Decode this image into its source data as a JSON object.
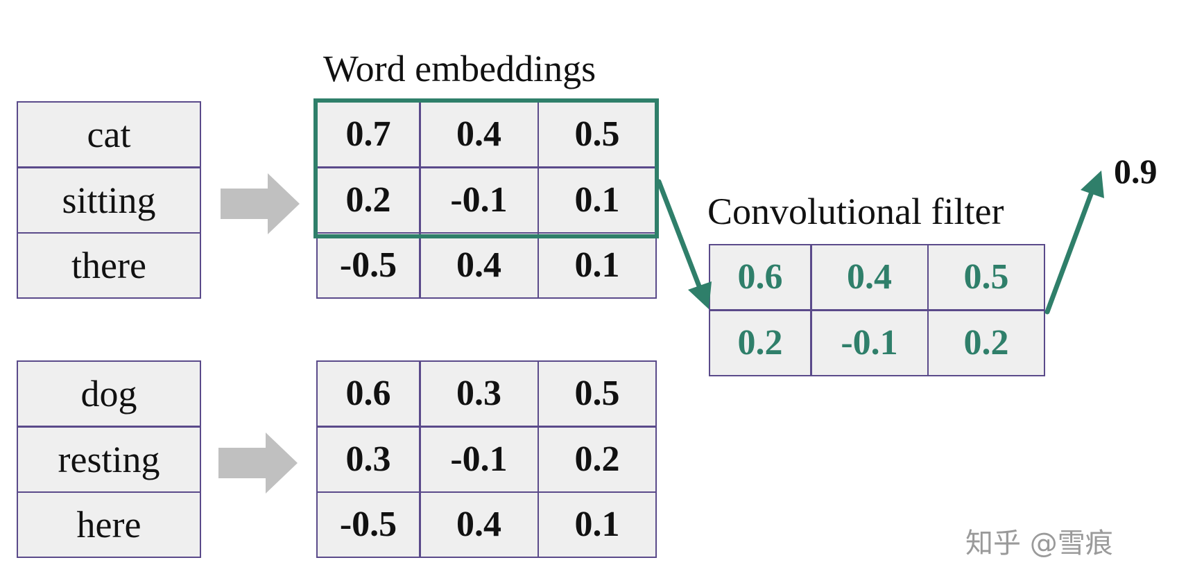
{
  "embeddings_title": "Word embeddings",
  "filter_title": "Convolutional filter",
  "sentence_1": {
    "words": [
      "cat",
      "sitting",
      "there"
    ],
    "embeddings": [
      [
        "0.7",
        "0.4",
        "0.5"
      ],
      [
        "0.2",
        "-0.1",
        "0.1"
      ],
      [
        "-0.5",
        "0.4",
        "0.1"
      ]
    ]
  },
  "sentence_2": {
    "words": [
      "dog",
      "resting",
      "here"
    ],
    "embeddings": [
      [
        "0.6",
        "0.3",
        "0.5"
      ],
      [
        "0.3",
        "-0.1",
        "0.2"
      ],
      [
        "-0.5",
        "0.4",
        "0.1"
      ]
    ]
  },
  "filter": [
    [
      "0.6",
      "0.4",
      "0.5"
    ],
    [
      "0.2",
      "-0.1",
      "0.2"
    ]
  ],
  "output_value": "0.9",
  "watermark": "知乎 @雪痕",
  "colors": {
    "highlight": "#2f7f6a",
    "grid_border": "#5a4a8a",
    "cell_fill": "#efefef",
    "arrow_gray": "#c0c0c0"
  }
}
